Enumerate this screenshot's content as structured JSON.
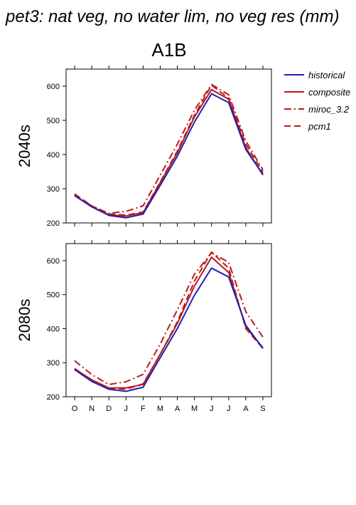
{
  "title": "pet3: nat veg, no water lim, no veg res (mm)",
  "scenario": "A1B",
  "colors": {
    "historical": "#1f1fb4",
    "model": "#b81c1c"
  },
  "legend": [
    {
      "name": "historical",
      "color": "#1f1fb4",
      "dash": "solid"
    },
    {
      "name": "composite",
      "color": "#b81c1c",
      "dash": "solid"
    },
    {
      "name": "miroc_3.2",
      "color": "#b81c1c",
      "dash": "dashdot"
    },
    {
      "name": "pcm1",
      "color": "#b81c1c",
      "dash": "dashed"
    }
  ],
  "chart_data": [
    {
      "type": "line",
      "row_label": "2040s",
      "categories": [
        "O",
        "N",
        "D",
        "J",
        "F",
        "M",
        "A",
        "M",
        "J",
        "J",
        "A",
        "S"
      ],
      "ylim": [
        200,
        650
      ],
      "yticks": [
        200,
        300,
        400,
        500,
        600
      ],
      "series": [
        {
          "name": "historical",
          "values": [
            280,
            247,
            222,
            215,
            226,
            310,
            395,
            495,
            578,
            552,
            415,
            342
          ]
        },
        {
          "name": "composite",
          "values": [
            280,
            248,
            224,
            220,
            230,
            318,
            405,
            510,
            590,
            562,
            420,
            340
          ]
        },
        {
          "name": "miroc_3.2",
          "values": [
            282,
            250,
            228,
            234,
            250,
            340,
            430,
            530,
            605,
            575,
            440,
            355
          ]
        },
        {
          "name": "pcm1",
          "values": [
            285,
            250,
            226,
            223,
            232,
            320,
            410,
            515,
            603,
            565,
            430,
            348
          ]
        }
      ]
    },
    {
      "type": "line",
      "row_label": "2080s",
      "categories": [
        "O",
        "N",
        "D",
        "J",
        "F",
        "M",
        "A",
        "M",
        "J",
        "J",
        "A",
        "S"
      ],
      "ylim": [
        200,
        650
      ],
      "yticks": [
        200,
        300,
        400,
        500,
        600
      ],
      "series": [
        {
          "name": "historical",
          "values": [
            280,
            245,
            222,
            216,
            228,
            315,
            400,
            498,
            578,
            552,
            410,
            342
          ]
        },
        {
          "name": "composite",
          "values": [
            282,
            250,
            226,
            226,
            236,
            325,
            415,
            525,
            610,
            565,
            405,
            344
          ]
        },
        {
          "name": "miroc_3.2",
          "values": [
            306,
            265,
            236,
            244,
            266,
            355,
            455,
            560,
            623,
            595,
            450,
            375
          ]
        },
        {
          "name": "pcm1",
          "values": [
            283,
            248,
            225,
            222,
            238,
            325,
            420,
            540,
            625,
            578,
            400,
            342
          ]
        }
      ]
    }
  ]
}
